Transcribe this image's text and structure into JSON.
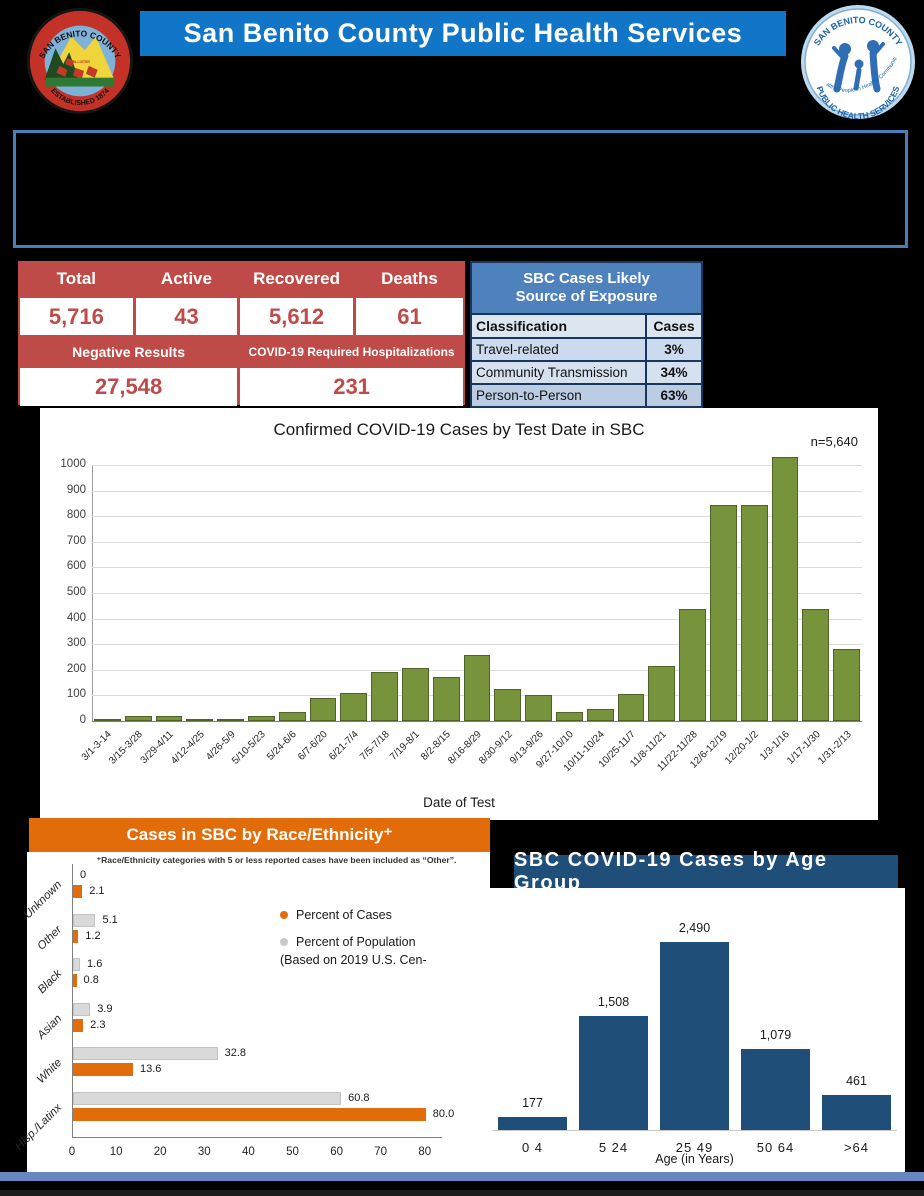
{
  "header": {
    "banner_title": "San Benito County Public Health Services",
    "seal": {
      "top_text": "SAN BENITO COUNTY",
      "bottom_text": "ESTABLISHED 1874",
      "center_text": "HOLLISTER"
    },
    "phs_logo": {
      "top_text": "SAN BENITO COUNTY",
      "bottom_text": "PUBLIC HEALTH SERVICES",
      "center_text": "Healthy People in Healthy Communities"
    }
  },
  "stats_table": {
    "cells": [
      {
        "label": "Total",
        "value": "5,716"
      },
      {
        "label": "Active",
        "value": "43"
      },
      {
        "label": "Recovered",
        "value": "5,612"
      },
      {
        "label": "Deaths",
        "value": "61"
      }
    ],
    "cells2": [
      {
        "label": "Negative Results",
        "value": "27,548"
      },
      {
        "label": "COVID-19 Required Hospitalizations",
        "value": "231"
      }
    ]
  },
  "exposure_table": {
    "title_line1": "SBC Cases Likely",
    "title_line2": "Source of Exposure",
    "header": [
      "Classification",
      "Cases"
    ],
    "rows": [
      {
        "classification": "Travel-related",
        "cases": "3%"
      },
      {
        "classification": "Community Transmission",
        "cases": "34%"
      },
      {
        "classification": "Person-to-Person",
        "cases": "63%"
      }
    ]
  },
  "chart_data": [
    {
      "type": "bar",
      "title": "Confirmed COVID-19 Cases by Test Date in SBC",
      "annotation": "n=5,640",
      "xlabel": "Date of Test",
      "ylabel": "",
      "ylim": [
        0,
        1000
      ],
      "ytick_step": 100,
      "grid": true,
      "bar_color": "#77933C",
      "categories": [
        "3/1-3-14",
        "3/15-3/28",
        "3/29-4/11",
        "4/12-4/25",
        "4/26-5/9",
        "5/10-5/23",
        "5/24-6/6",
        "6/7-6/20",
        "6/21-7/4",
        "7/5-7/18",
        "7/19-8/1",
        "8/2-8/15",
        "8/16-8/29",
        "8/30-9/12",
        "9/13-9/26",
        "9/27-10/10",
        "10/11-10/24",
        "10/25-11/7",
        "11/8-11/21",
        "11/22-11/28",
        "12/6-12/19",
        "12/20-1/2",
        "1/3-1/16",
        "1/17-1/30",
        "1/31-2/13"
      ],
      "values": [
        3,
        20,
        20,
        8,
        8,
        18,
        35,
        88,
        110,
        192,
        208,
        172,
        257,
        125,
        100,
        35,
        45,
        105,
        215,
        437,
        845,
        845,
        1030,
        437,
        282
      ]
    },
    {
      "type": "bar",
      "orientation": "horizontal",
      "title": "Cases in SBC by Race/Ethnicity⁺",
      "footnote": "⁺Race/Ethnicity categories with 5 or less reported cases have been included as “Other”.",
      "categories": [
        "Unknown",
        "Other",
        "Black",
        "Asian",
        "White",
        "Hisp./Latinx"
      ],
      "series": [
        {
          "name": "Percent of Population",
          "color": "#D9D9D9",
          "values": [
            0,
            5.1,
            1.6,
            3.9,
            32.8,
            60.8
          ],
          "labels": [
            "0",
            "5.1",
            "1.6",
            "3.9",
            "32.8",
            "60.8"
          ]
        },
        {
          "name": "Percent of Cases",
          "color": "#E36C0A",
          "values": [
            2.1,
            1.2,
            0.8,
            2.3,
            13.6,
            80.0
          ],
          "labels": [
            "2.1",
            "1.2",
            "0.8",
            "2.3",
            "13.6",
            "80.0"
          ]
        }
      ],
      "legend_entries": [
        "Percent of Cases",
        "Percent of Population",
        "(Based on 2019 U.S. Cen-"
      ],
      "xlim": [
        0,
        88
      ],
      "xtick_step": 10,
      "xtick_max": 80
    },
    {
      "type": "bar",
      "title": "SBC COVID-19 Cases by Age Group",
      "xlabel": "Age (in Years)",
      "bar_color": "#1F4E79",
      "categories": [
        "0  4",
        "5  24",
        "25  49",
        "50  64",
        ">64"
      ],
      "values": [
        177,
        1508,
        2490,
        1079,
        461
      ],
      "labels": [
        "177",
        "1,508",
        "2,490",
        "1,079",
        "461"
      ],
      "ylim": [
        0,
        2600
      ]
    }
  ],
  "colors": {
    "banner_blue": "#1176C8",
    "stats_red": "#BE4B48",
    "exposure_header_blue": "#4F81BD",
    "exposure_border_navy": "#17375E",
    "bar_green": "#77933C",
    "accent_orange": "#E36C0A",
    "population_gray": "#D9D9D9",
    "navy": "#1F4E79",
    "info_box_border": "#4A7EBB",
    "footer_blue": "#6787C2"
  }
}
